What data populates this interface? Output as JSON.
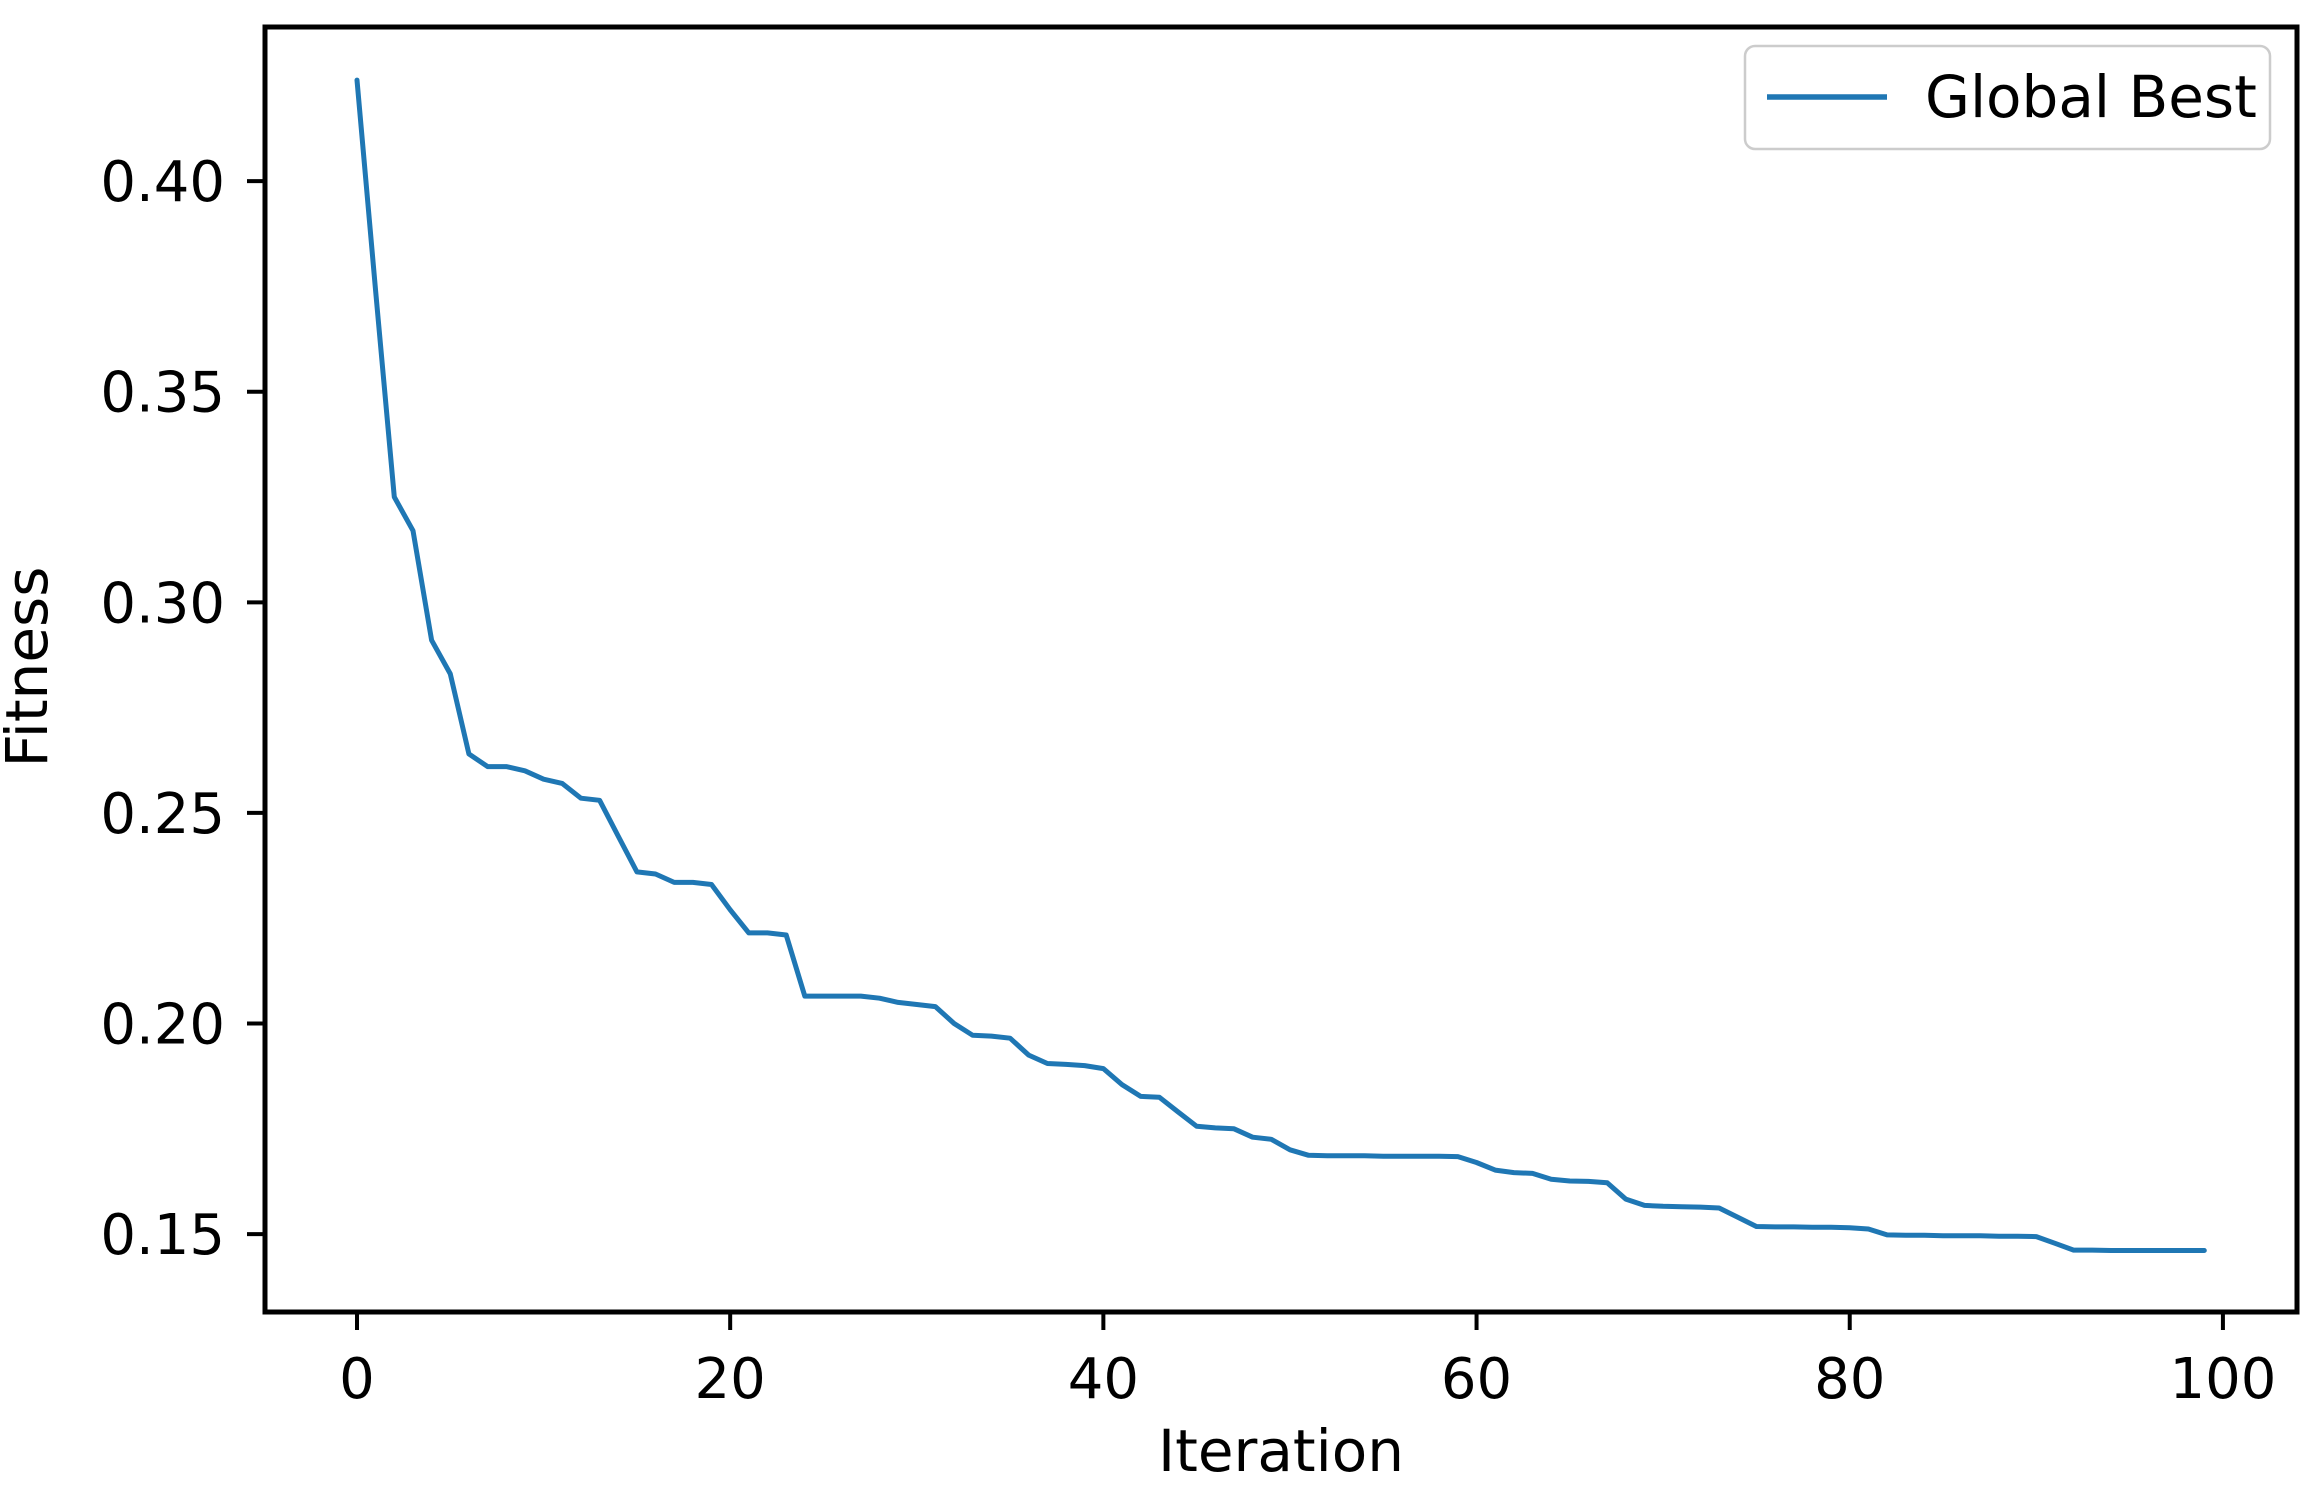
{
  "figure": {
    "background": "#ffffff",
    "line_color": "#1f77b4",
    "axis_color": "#000000",
    "tick_color": "#000000",
    "legend": {
      "label": "Global Best",
      "border_color": "#cccccc",
      "background": "#ffffff"
    }
  },
  "chart_data": {
    "type": "line",
    "title": "",
    "xlabel": "Iteration",
    "ylabel": "Fitness",
    "grid": false,
    "legend_position": "upper right",
    "xlim": [
      -4.93,
      103.97
    ],
    "ylim": [
      0.1315,
      0.4366
    ],
    "x_ticks": {
      "values": [
        0,
        20,
        40,
        60,
        80,
        100
      ],
      "labels": [
        "0",
        "20",
        "40",
        "60",
        "80",
        "100"
      ]
    },
    "y_ticks": {
      "values": [
        0.15,
        0.2,
        0.25,
        0.3,
        0.35,
        0.4
      ],
      "labels": [
        "0.15",
        "0.20",
        "0.25",
        "0.30",
        "0.35",
        "0.40"
      ]
    },
    "series": [
      {
        "name": "Global Best",
        "x_start": 0,
        "x_step": 1,
        "values": [
          0.424,
          0.374,
          0.325,
          0.317,
          0.291,
          0.283,
          0.264,
          0.261,
          0.261,
          0.26,
          0.258,
          0.257,
          0.2535,
          0.253,
          0.2445,
          0.236,
          0.2355,
          0.2335,
          0.2335,
          0.233,
          0.227,
          0.2215,
          0.2215,
          0.221,
          0.2065,
          0.2065,
          0.2065,
          0.2065,
          0.206,
          0.205,
          0.2045,
          0.204,
          0.2,
          0.1972,
          0.197,
          0.1965,
          0.1925,
          0.1905,
          0.1903,
          0.19,
          0.1893,
          0.1855,
          0.1827,
          0.1825,
          0.179,
          0.1756,
          0.1752,
          0.175,
          0.173,
          0.1725,
          0.17,
          0.1687,
          0.1686,
          0.1686,
          0.1686,
          0.1685,
          0.1685,
          0.1685,
          0.1685,
          0.1684,
          0.167,
          0.1652,
          0.1646,
          0.1644,
          0.163,
          0.1626,
          0.1625,
          0.1622,
          0.1583,
          0.1568,
          0.1566,
          0.1565,
          0.1564,
          0.1562,
          0.154,
          0.1518,
          0.1517,
          0.1517,
          0.1516,
          0.1516,
          0.1515,
          0.1512,
          0.1498,
          0.1497,
          0.1497,
          0.1496,
          0.1496,
          0.1496,
          0.1495,
          0.1495,
          0.1494,
          0.1478,
          0.1462,
          0.1462,
          0.1461,
          0.1461,
          0.1461,
          0.1461,
          0.1461,
          0.1461
        ]
      }
    ]
  }
}
